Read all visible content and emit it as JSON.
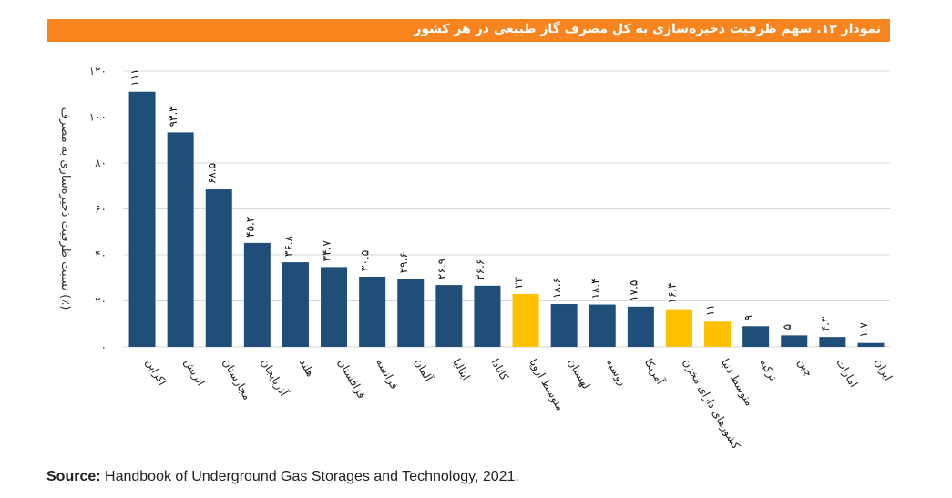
{
  "title": "نمودار ۱۳. سهم ظرفیت ذخیره‌سازی به کل مصرف گاز طبیعی در هر کشور",
  "source_label": "Source:",
  "source_text": "Handbook of Underground Gas Storages and Technology, 2021.",
  "colors": {
    "country": "#1f4e79",
    "average": "#ffc000",
    "title_bg": "#f7841f",
    "grid": "#d9d9d9"
  },
  "chart_data": {
    "type": "bar",
    "title": "نمودار ۱۳. سهم ظرفیت ذخیره‌سازی به کل مصرف گاز طبیعی در هر کشور",
    "xlabel": "",
    "ylabel": "نسبت ظرفیت ذخیره‌سازی به مصرف (٪)",
    "ylim": [
      0,
      120
    ],
    "yticks": [
      0,
      20,
      40,
      60,
      80,
      100,
      120
    ],
    "ytick_labels": [
      "۰",
      "۲۰",
      "۴۰",
      "۶۰",
      "۸۰",
      "۱۰۰",
      "۱۲۰"
    ],
    "grid": true,
    "categories": [
      "اکراین",
      "اتریش",
      "مجارستان",
      "آذربایجان",
      "هلند",
      "قزاقستان",
      "فرانسه",
      "آلمان",
      "ایتالیا",
      "کانادا",
      "متوسط اروپا",
      "لهستان",
      "روسیه",
      "آمریکا",
      "کشورهای دارای مخزن",
      "متوسط دنیا",
      "ترکیه",
      "چین",
      "امارات",
      "ایران"
    ],
    "values": [
      111,
      93.3,
      68.5,
      45.2,
      36.8,
      34.7,
      30.5,
      29.6,
      26.9,
      26.6,
      23,
      18.6,
      18.4,
      17.5,
      16.4,
      11,
      9,
      5,
      4.3,
      1.7
    ],
    "value_labels": [
      "۱۱۱",
      "۹۳.۳",
      "۶۸.۵",
      "۴۵.۲",
      "۳۶.۸",
      "۳۴.۷",
      "۳۰.۵",
      "۲۹.۶",
      "۲۶.۹",
      "۲۶.۶",
      "۲۳",
      "۱۸.۶",
      "۱۸.۴",
      "۱۷.۵",
      "۱۶.۴",
      "۱۱",
      "۹",
      "۵",
      "۴.۳",
      "۱.۷"
    ],
    "highlight": [
      false,
      false,
      false,
      false,
      false,
      false,
      false,
      false,
      false,
      false,
      true,
      false,
      false,
      false,
      true,
      true,
      false,
      false,
      false,
      false
    ]
  }
}
